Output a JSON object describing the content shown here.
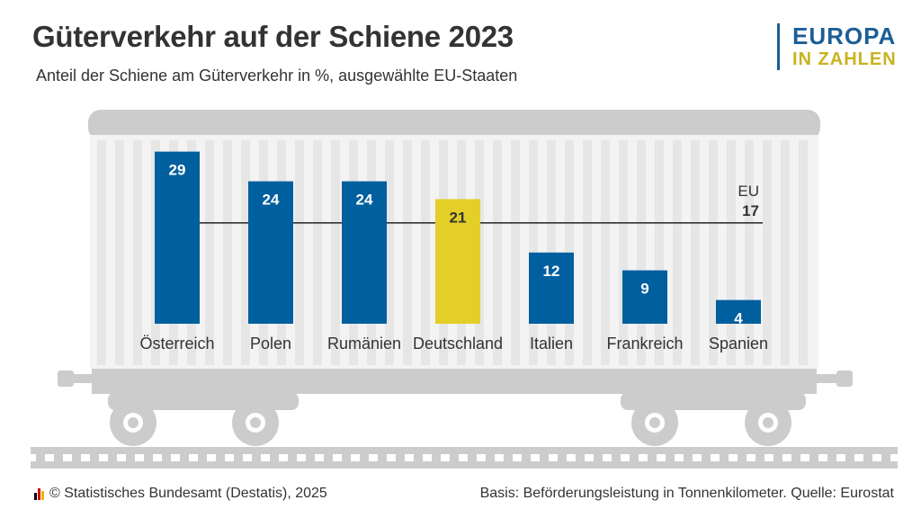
{
  "header": {
    "title": "Güterverkehr auf der Schiene 2023",
    "subtitle": "Anteil der Schiene am Güterverkehr in %, ausgewählte EU-Staaten"
  },
  "brand": {
    "line1": "EUROPA",
    "line2": "IN ZAHLEN"
  },
  "chart_data": {
    "type": "bar",
    "title": "Güterverkehr auf der Schiene 2023",
    "subtitle": "Anteil der Schiene am Güterverkehr in %, ausgewählte EU-Staaten",
    "categories": [
      "Österreich",
      "Polen",
      "Rumänien",
      "Deutschland",
      "Italien",
      "Frankreich",
      "Spanien"
    ],
    "values": [
      29,
      24,
      24,
      21,
      12,
      9,
      4
    ],
    "highlight": "Deutschland",
    "reference_line": {
      "label": "EU",
      "value": 17
    },
    "ylim": [
      0,
      30
    ],
    "xlabel": "",
    "ylabel": ""
  },
  "colors": {
    "bar": "#005f9e",
    "highlight": "#e3cf28",
    "wagon": "#cccccc",
    "stripe": "#e6e6e6"
  },
  "footer": {
    "left": "© Statistisches Bundesamt (Destatis), 2025",
    "right": "Basis: Beförderungsleistung in Tonnenkilometer. Quelle: Eurostat"
  }
}
